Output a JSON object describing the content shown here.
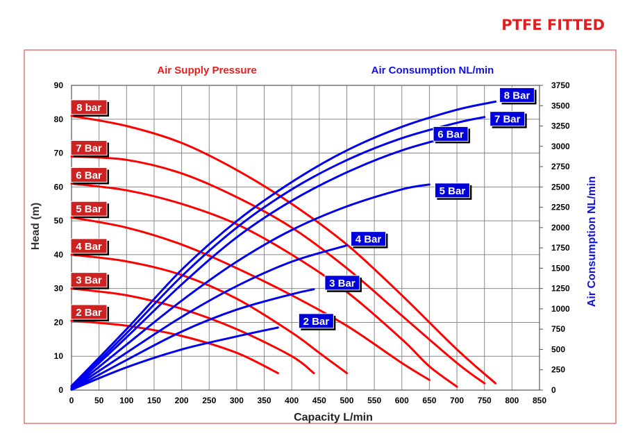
{
  "page": {
    "title": "PTFE FITTED"
  },
  "colors": {
    "head_curve": "#ff0000",
    "air_curve": "#0000ee",
    "head_badge": "#cc2222",
    "air_badge": "#0000dd",
    "frame": "#e05050",
    "grid": "#888888"
  },
  "chart_data": {
    "type": "line",
    "legend": {
      "head_title": "Air Supply Pressure",
      "air_title": "Air Consumption NL/min"
    },
    "xlabel": "Capacity L/min",
    "ylabel_left": "Head (m)",
    "ylabel_right": "Air Consumption NL/min",
    "xlim": [
      0,
      850
    ],
    "ylim_left": [
      0,
      90
    ],
    "ylim_right": [
      0,
      3750
    ],
    "grid": true,
    "x_ticks": [
      "0",
      "50",
      "100",
      "150",
      "200",
      "250",
      "300",
      "350",
      "400",
      "450",
      "500",
      "550",
      "600",
      "650",
      "700",
      "750",
      "800",
      "850"
    ],
    "y_left_ticks": [
      "0",
      "10",
      "20",
      "30",
      "40",
      "50",
      "60",
      "70",
      "80",
      "90"
    ],
    "y_right_ticks": [
      "0",
      "250",
      "500",
      "750",
      "1000",
      "1250",
      "1500",
      "1750",
      "2000",
      "2250",
      "2500",
      "2750",
      "3000",
      "3250",
      "3500",
      "3750"
    ],
    "head_series": [
      {
        "name": "8 bar",
        "points": [
          [
            0,
            81
          ],
          [
            100,
            78
          ],
          [
            200,
            73
          ],
          [
            300,
            65
          ],
          [
            400,
            55
          ],
          [
            500,
            43
          ],
          [
            600,
            28
          ],
          [
            700,
            12
          ],
          [
            770,
            2
          ]
        ]
      },
      {
        "name": "7 Bar",
        "points": [
          [
            0,
            69
          ],
          [
            100,
            68
          ],
          [
            200,
            64
          ],
          [
            300,
            57
          ],
          [
            400,
            48
          ],
          [
            500,
            36
          ],
          [
            600,
            22
          ],
          [
            700,
            8
          ],
          [
            750,
            2
          ]
        ]
      },
      {
        "name": "6 Bar",
        "points": [
          [
            0,
            61
          ],
          [
            100,
            59
          ],
          [
            200,
            55
          ],
          [
            300,
            49
          ],
          [
            400,
            40
          ],
          [
            500,
            29
          ],
          [
            600,
            15
          ],
          [
            650,
            7
          ],
          [
            700,
            1
          ]
        ]
      },
      {
        "name": "5 Bar",
        "points": [
          [
            0,
            51
          ],
          [
            100,
            48
          ],
          [
            200,
            43
          ],
          [
            300,
            36
          ],
          [
            400,
            28
          ],
          [
            500,
            19
          ],
          [
            600,
            8
          ],
          [
            650,
            3
          ]
        ]
      },
      {
        "name": "4 Bar",
        "points": [
          [
            0,
            40
          ],
          [
            100,
            38
          ],
          [
            200,
            34
          ],
          [
            300,
            27
          ],
          [
            400,
            17
          ],
          [
            450,
            11
          ],
          [
            500,
            5
          ]
        ]
      },
      {
        "name": "3 Bar",
        "points": [
          [
            0,
            30
          ],
          [
            100,
            28
          ],
          [
            200,
            24
          ],
          [
            300,
            18
          ],
          [
            400,
            10
          ],
          [
            440,
            5
          ]
        ]
      },
      {
        "name": "2 Bar",
        "points": [
          [
            0,
            20.5
          ],
          [
            100,
            19
          ],
          [
            200,
            16
          ],
          [
            300,
            11
          ],
          [
            375,
            5
          ]
        ]
      }
    ],
    "air_series": [
      {
        "name": "8 Bar",
        "points": [
          [
            0,
            50
          ],
          [
            100,
            750
          ],
          [
            200,
            1480
          ],
          [
            300,
            2080
          ],
          [
            400,
            2560
          ],
          [
            500,
            2950
          ],
          [
            600,
            3240
          ],
          [
            700,
            3450
          ],
          [
            770,
            3550
          ]
        ]
      },
      {
        "name": "7 Bar",
        "points": [
          [
            0,
            30
          ],
          [
            100,
            700
          ],
          [
            200,
            1400
          ],
          [
            300,
            2000
          ],
          [
            400,
            2470
          ],
          [
            500,
            2830
          ],
          [
            600,
            3100
          ],
          [
            700,
            3290
          ],
          [
            750,
            3360
          ]
        ]
      },
      {
        "name": "6 Bar",
        "points": [
          [
            0,
            20
          ],
          [
            100,
            650
          ],
          [
            200,
            1300
          ],
          [
            300,
            1880
          ],
          [
            400,
            2330
          ],
          [
            500,
            2680
          ],
          [
            600,
            2950
          ],
          [
            700,
            3140
          ],
          [
            700,
            3140
          ]
        ]
      },
      {
        "name": "5 Bar",
        "points": [
          [
            0,
            10
          ],
          [
            100,
            560
          ],
          [
            200,
            1100
          ],
          [
            300,
            1580
          ],
          [
            400,
            1970
          ],
          [
            500,
            2260
          ],
          [
            600,
            2470
          ],
          [
            650,
            2530
          ]
        ]
      },
      {
        "name": "4 Bar",
        "points": [
          [
            0,
            10
          ],
          [
            100,
            460
          ],
          [
            200,
            900
          ],
          [
            300,
            1280
          ],
          [
            400,
            1580
          ],
          [
            500,
            1780
          ]
        ]
      },
      {
        "name": "3 Bar",
        "points": [
          [
            0,
            5
          ],
          [
            100,
            370
          ],
          [
            200,
            720
          ],
          [
            300,
            990
          ],
          [
            400,
            1180
          ],
          [
            440,
            1240
          ]
        ]
      },
      {
        "name": "2 Bar",
        "points": [
          [
            0,
            5
          ],
          [
            100,
            280
          ],
          [
            200,
            500
          ],
          [
            300,
            660
          ],
          [
            375,
            770
          ]
        ]
      }
    ]
  }
}
